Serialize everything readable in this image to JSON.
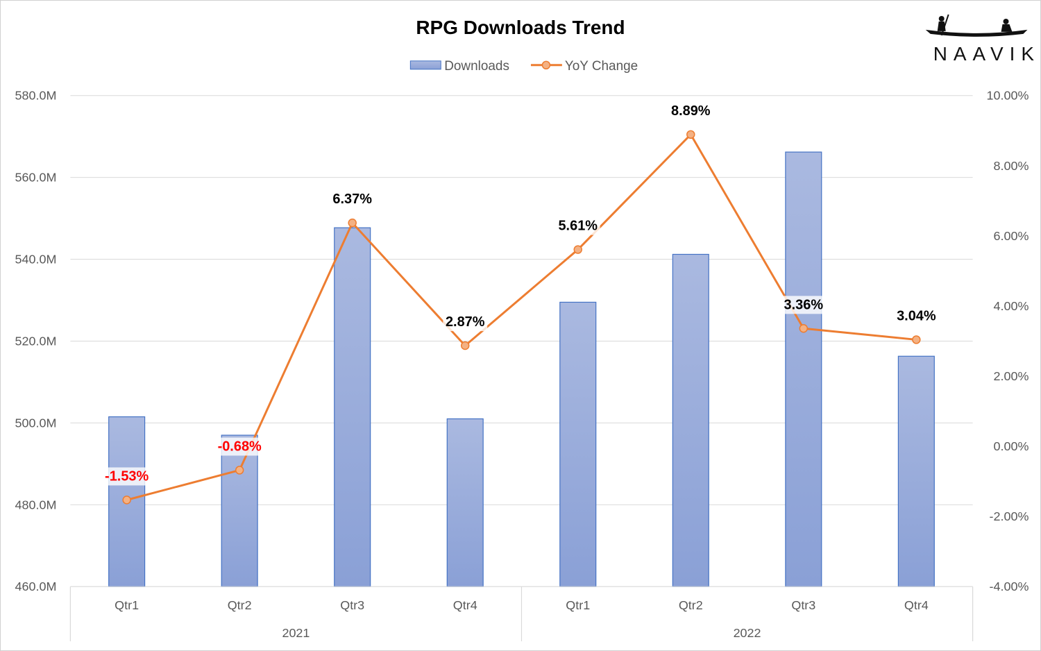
{
  "chart_data": {
    "type": "bar+line",
    "title": "RPG Downloads Trend",
    "legend": [
      {
        "name": "Downloads",
        "kind": "bar"
      },
      {
        "name": "YoY Change",
        "kind": "line"
      }
    ],
    "legend_position": "top-center",
    "groups": [
      {
        "label": "2021",
        "categories": [
          "Qtr1",
          "Qtr2",
          "Qtr3",
          "Qtr4"
        ]
      },
      {
        "label": "2022",
        "categories": [
          "Qtr1",
          "Qtr2",
          "Qtr3",
          "Qtr4"
        ]
      }
    ],
    "series": [
      {
        "name": "Downloads",
        "type": "bar",
        "axis": "left",
        "unit": "M",
        "values": [
          501.5,
          497.0,
          547.7,
          501.0,
          529.5,
          541.2,
          566.2,
          516.3
        ]
      },
      {
        "name": "YoY Change",
        "type": "line",
        "axis": "right",
        "unit": "%",
        "values": [
          -1.53,
          -0.68,
          6.37,
          2.87,
          5.61,
          8.89,
          3.36,
          3.04
        ],
        "labels": [
          "-1.53%",
          "-0.68%",
          "6.37%",
          "2.87%",
          "5.61%",
          "8.89%",
          "3.36%",
          "3.04%"
        ]
      }
    ],
    "y_left": {
      "min": 460,
      "max": 580,
      "step": 20,
      "ticks": [
        "460.0M",
        "480.0M",
        "500.0M",
        "520.0M",
        "540.0M",
        "560.0M",
        "580.0M"
      ]
    },
    "y_right": {
      "min": -4,
      "max": 10,
      "step": 2,
      "ticks": [
        "-4.00%",
        "-2.00%",
        "0.00%",
        "2.00%",
        "4.00%",
        "6.00%",
        "8.00%",
        "10.00%"
      ]
    },
    "grid": true,
    "colors": {
      "bar_top": "#aab9e0",
      "bar_bottom": "#8aa0d6",
      "bar_border": "#4472c4",
      "line": "#ed7d31",
      "marker_fill": "#f4b183",
      "negative_label": "#ff0000",
      "positive_label": "#000000",
      "grid": "#d9d9d9",
      "axis_text": "#595959"
    }
  },
  "logo": {
    "text": "NAAVIK"
  }
}
